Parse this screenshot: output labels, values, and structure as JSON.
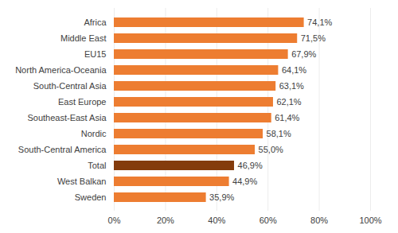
{
  "chart_data": {
    "type": "bar",
    "orientation": "horizontal",
    "categories": [
      "Africa",
      "Middle East",
      "EU15",
      "North America-Oceania",
      "South-Central Asia",
      "East Europe",
      "Southeast-East Asia",
      "Nordic",
      "South-Central America",
      "Total",
      "West Balkan",
      "Sweden"
    ],
    "values": [
      74.1,
      71.5,
      67.9,
      64.1,
      63.1,
      62.1,
      61.4,
      58.1,
      55.0,
      46.9,
      44.9,
      35.9
    ],
    "value_labels": [
      "74,1%",
      "71,5%",
      "67,9%",
      "64,1%",
      "63,1%",
      "62,1%",
      "61,4%",
      "58,1%",
      "55,0%",
      "46,9%",
      "44,9%",
      "35,9%"
    ],
    "colors": [
      "#ed7d31",
      "#ed7d31",
      "#ed7d31",
      "#ed7d31",
      "#ed7d31",
      "#ed7d31",
      "#ed7d31",
      "#ed7d31",
      "#ed7d31",
      "#843c0c",
      "#ed7d31",
      "#ed7d31"
    ],
    "xlim": [
      0,
      100
    ],
    "xticks": [
      {
        "value": 0,
        "label": "0%"
      },
      {
        "value": 20,
        "label": "20%"
      },
      {
        "value": 40,
        "label": "40%"
      },
      {
        "value": 60,
        "label": "60%"
      },
      {
        "value": 80,
        "label": "80%"
      },
      {
        "value": 100,
        "label": "100%"
      }
    ],
    "grid": true,
    "data_labels": true
  }
}
